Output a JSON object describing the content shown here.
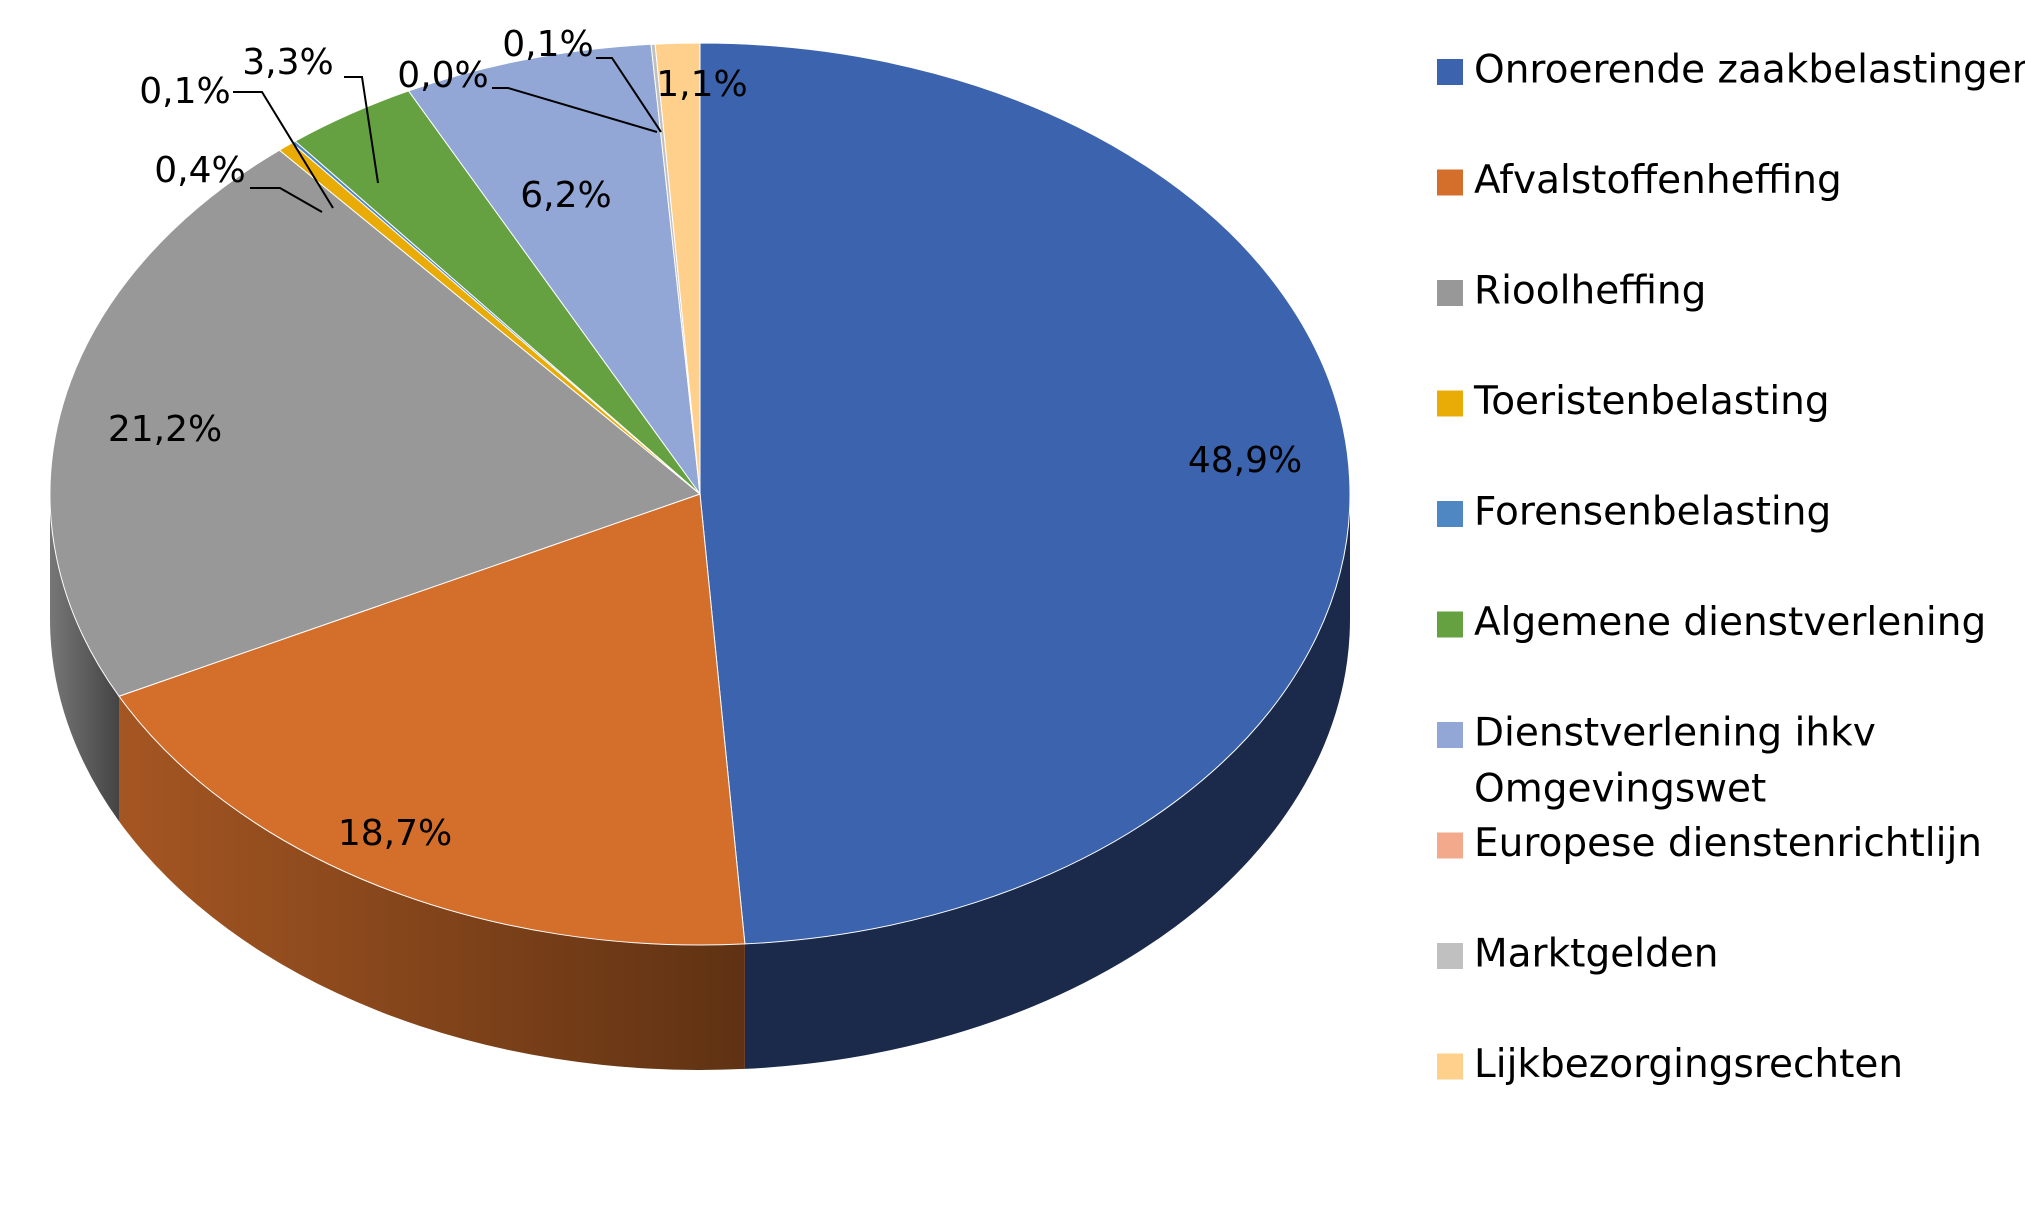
{
  "chart_data": {
    "type": "pie",
    "style": "3d-pie",
    "title": "",
    "legend_position": "right",
    "series": [
      {
        "categories": [
          "Onroerende zaakbelastingen",
          "Afvalstoffenheffing",
          "Rioolheffing",
          "Toeristenbelasting",
          "Forensenbelasting",
          "Algemene dienstverlening",
          "Dienstverlening ihkv Omgevingswet",
          "Europese dienstenrichtlijn",
          "Marktgelden",
          "Lijkbezorgingsrechten"
        ],
        "values": [
          48.9,
          18.7,
          21.2,
          0.4,
          0.1,
          3.3,
          6.2,
          0.0,
          0.1,
          1.1
        ],
        "labels": [
          "48,9%",
          "18,7%",
          "21,2%",
          "0,4%",
          "0,1%",
          "3,3%",
          "6,2%",
          "0,0%",
          "0,1%",
          "1,1%"
        ],
        "colors": [
          "#3C63AE",
          "#D46E2B",
          "#989898",
          "#E9AC07",
          "#4F87C2",
          "#65A140",
          "#92A7D6",
          "#F2A98C",
          "#C0C0C0",
          "#FFD08B"
        ]
      }
    ],
    "legend": [
      {
        "lines": [
          "Onroerende zaakbelastingen"
        ]
      },
      {
        "lines": [
          "Afvalstoffenheffing"
        ]
      },
      {
        "lines": [
          "Rioolheffing"
        ]
      },
      {
        "lines": [
          "Toeristenbelasting"
        ]
      },
      {
        "lines": [
          "Forensenbelasting"
        ]
      },
      {
        "lines": [
          "Algemene dienstverlening"
        ]
      },
      {
        "lines": [
          "Dienstverlening ihkv",
          "Omgevingswet"
        ]
      },
      {
        "lines": [
          "Europese dienstenrichtlijn"
        ]
      },
      {
        "lines": [
          "Marktgelden"
        ]
      },
      {
        "lines": [
          "Lijkbezorgingsrechten"
        ]
      }
    ]
  }
}
